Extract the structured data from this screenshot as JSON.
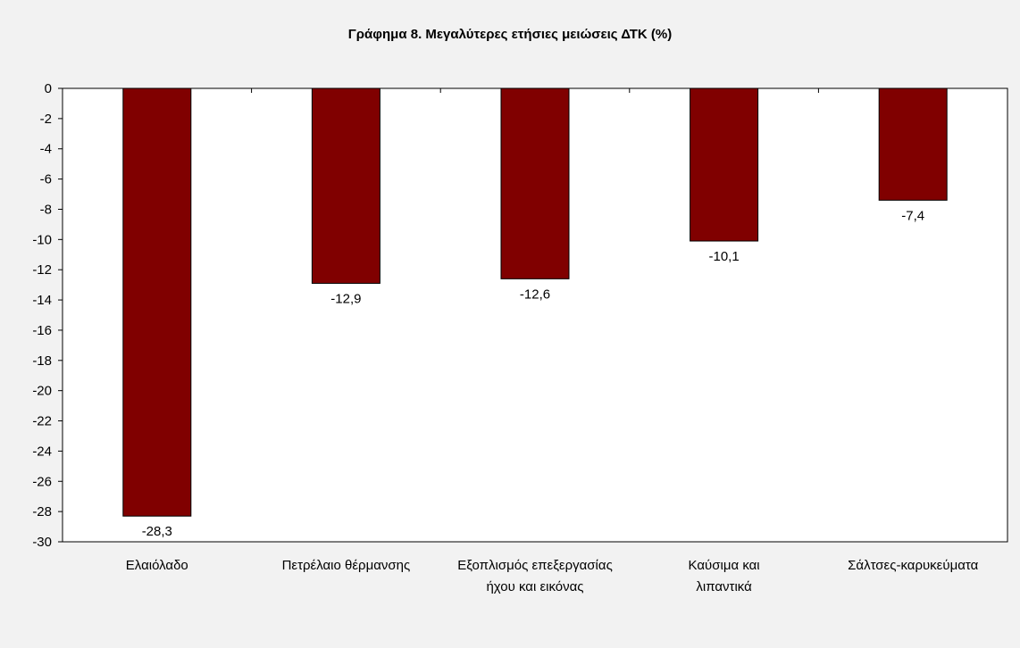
{
  "chart_data": {
    "type": "bar",
    "title": "Γράφημα 8. Μεγαλύτερες ετήσιες μειώσεις ΔΤΚ (%)",
    "categories": [
      [
        "Ελαιόλαδο"
      ],
      [
        "Πετρέλαιο θέρμανσης"
      ],
      [
        "Εξοπλισμός επεξεργασίας",
        "ήχου και εικόνας"
      ],
      [
        "Καύσιμα και",
        "λιπαντικά"
      ],
      [
        "Σάλτσες-καρυκεύματα"
      ]
    ],
    "values": [
      -28.3,
      -12.9,
      -12.6,
      -10.1,
      -7.4
    ],
    "data_labels": [
      "-28,3",
      "-12,9",
      "-12,6",
      "-10,1",
      "-7,4"
    ],
    "ylim": [
      -30,
      0
    ],
    "yticks": [
      0,
      -2,
      -4,
      -6,
      -8,
      -10,
      -12,
      -14,
      -16,
      -18,
      -20,
      -22,
      -24,
      -26,
      -28,
      -30
    ],
    "xlabel": "",
    "ylabel": "",
    "grid": false,
    "bar_color": "#800000",
    "background_color": "#f2f2f2",
    "plot_background": "#ffffff"
  }
}
